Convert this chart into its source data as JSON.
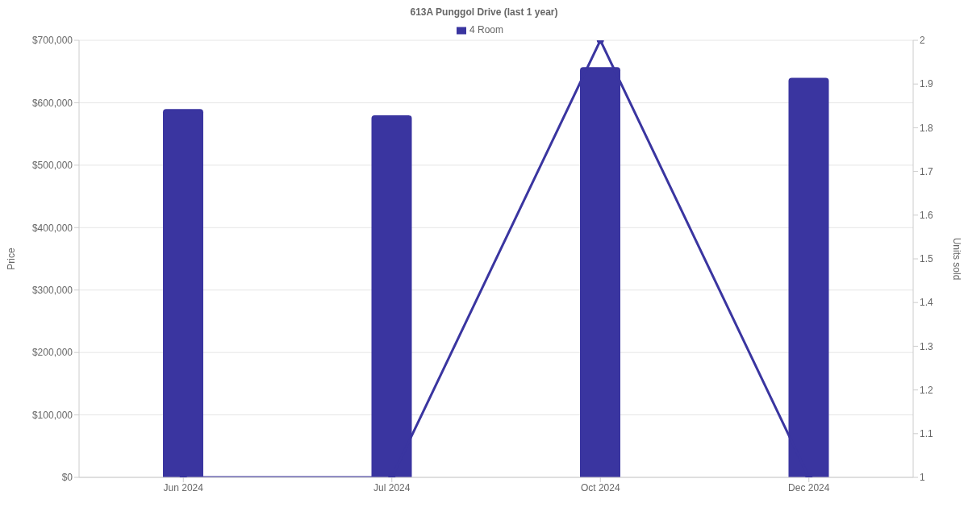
{
  "chart_data": {
    "type": "bar",
    "title": "613A Punggol Drive (last 1 year)",
    "categories": [
      "Jun 2024",
      "Jul 2024",
      "Oct 2024",
      "Dec 2024"
    ],
    "series": [
      {
        "name": "4 Room",
        "color": "#3a35a0",
        "values": [
          590000,
          580000,
          657000,
          640000
        ]
      },
      {
        "type": "line",
        "axis": "y2",
        "color": "#3a35a0",
        "values": [
          1,
          1,
          2,
          1
        ]
      }
    ],
    "ylabel": "Price",
    "y2label": "Units sold",
    "ylim": [
      0,
      700000
    ],
    "yticks": [
      {
        "value": 0,
        "label": "$0"
      },
      {
        "value": 100000,
        "label": "$100,000"
      },
      {
        "value": 200000,
        "label": "$200,000"
      },
      {
        "value": 300000,
        "label": "$300,000"
      },
      {
        "value": 400000,
        "label": "$400,000"
      },
      {
        "value": 500000,
        "label": "$500,000"
      },
      {
        "value": 600000,
        "label": "$600,000"
      },
      {
        "value": 700000,
        "label": "$700,000"
      }
    ],
    "y2lim": [
      1,
      2
    ],
    "y2ticks": [
      1,
      1.1,
      1.2,
      1.3,
      1.4,
      1.5,
      1.6,
      1.7,
      1.8,
      1.9,
      2
    ],
    "grid": "y",
    "legend": "top",
    "marker": "circle",
    "line_style": "solid"
  }
}
